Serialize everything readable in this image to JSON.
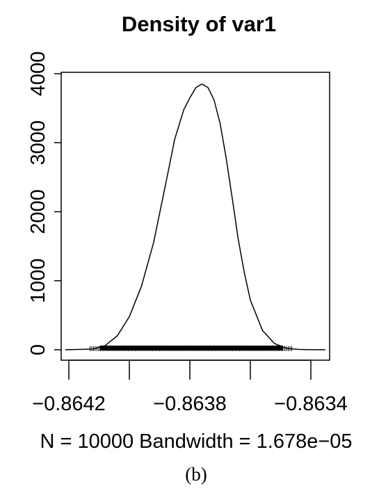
{
  "chart_data": {
    "type": "line",
    "title": "Density of var1",
    "subtitle": "N = 10000   Bandwidth = 1.678e−05",
    "caption": "(b)",
    "xlim": [
      -0.86422,
      -0.86335
    ],
    "ylim": [
      0,
      4000
    ],
    "x_ticks": [
      -0.8642,
      -0.864,
      -0.8638,
      -0.8636,
      -0.8634
    ],
    "x_tick_labels": [
      "−0.8642",
      "",
      "−0.8638",
      "",
      "−0.8634"
    ],
    "y_ticks": [
      0,
      1000,
      2000,
      3000,
      4000
    ],
    "y_tick_labels": [
      "0",
      "1000",
      "2000",
      "3000",
      "4000"
    ],
    "series": [
      {
        "x": [
          -0.86422,
          -0.86412,
          -0.86408,
          -0.86404,
          -0.864,
          -0.86396,
          -0.86392,
          -0.86388,
          -0.86385,
          -0.86382,
          -0.8638,
          -0.86378,
          -0.86376,
          -0.86374,
          -0.86372,
          -0.8637,
          -0.86368,
          -0.86366,
          -0.86364,
          -0.86362,
          -0.8636,
          -0.86356,
          -0.86352,
          -0.86348,
          -0.86344,
          -0.8634,
          -0.86335
        ],
        "y": [
          0,
          10,
          60,
          200,
          480,
          920,
          1550,
          2400,
          3050,
          3480,
          3650,
          3800,
          3850,
          3800,
          3620,
          3280,
          2780,
          2200,
          1600,
          1120,
          720,
          280,
          90,
          20,
          5,
          1,
          0
        ]
      }
    ],
    "rug_range": [
      -0.86413,
      -0.86346
    ],
    "color": "#000000"
  }
}
